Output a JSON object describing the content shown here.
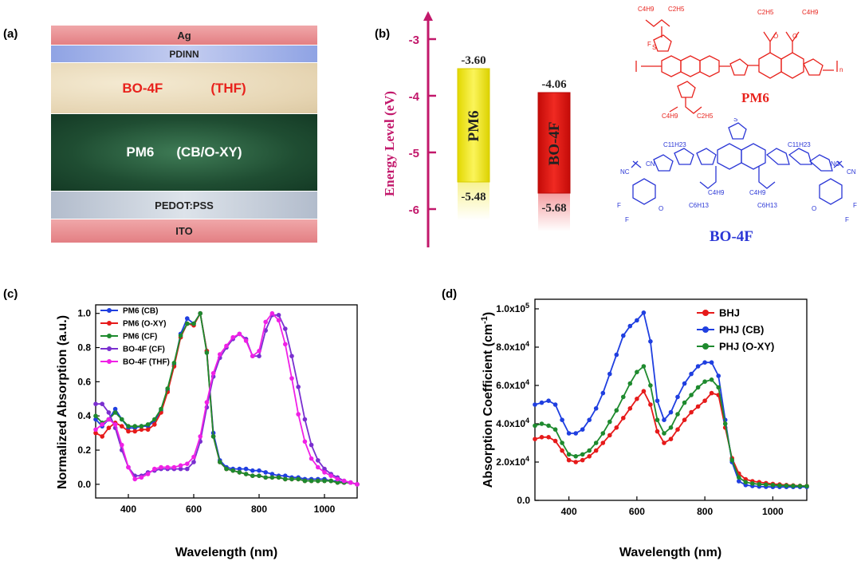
{
  "panel_labels": [
    "(a)",
    "(b)",
    "(c)",
    "(d)"
  ],
  "device_stack": {
    "layers": [
      {
        "name": "Ag",
        "color": "#e88c8f"
      },
      {
        "name": "PDINN",
        "color": "#a7b5e6"
      },
      {
        "name": "BO-4F",
        "extra": "(THF)",
        "color": "#eadcc0",
        "text_color": "#e8221c"
      },
      {
        "name": "PM6",
        "extra": "(CB/O-XY)",
        "color": "#255a3a",
        "text_color": "#ffffff"
      },
      {
        "name": "PEDOT:PSS",
        "color": "#c5cdd8"
      },
      {
        "name": "ITO",
        "color": "#e88c8f"
      }
    ]
  },
  "energy_diagram": {
    "ylabel": "Energy Level (eV)",
    "ticks": [
      "-3",
      "-4",
      "-5",
      "-6"
    ],
    "materials": [
      {
        "name": "PM6",
        "lumo": "-3.60",
        "homo": "-5.48",
        "color": "#f2ea17"
      },
      {
        "name": "BO-4F",
        "lumo": "-4.06",
        "homo": "-5.68",
        "color": "#e3140f"
      }
    ]
  },
  "molecules": {
    "pm6": {
      "name": "PM6",
      "color": "#e8221c"
    },
    "bo4f": {
      "name": "BO-4F",
      "color": "#2b37d6"
    }
  },
  "chart_data": [
    {
      "type": "line",
      "xlabel": "Wavelength (nm)",
      "ylabel": "Normalized Absorption (a.u.)",
      "xlim": [
        300,
        1100
      ],
      "ylim": [
        -0.08,
        1.05
      ],
      "xticks": [
        "400",
        "600",
        "800",
        "1000"
      ],
      "yticks": [
        "0.0",
        "0.2",
        "0.4",
        "0.6",
        "0.8",
        "1.0"
      ],
      "legend_position": "top-left",
      "series": [
        {
          "name": "PM6 (CB)",
          "color": "#1f3fe0",
          "x": [
            300,
            320,
            340,
            360,
            380,
            400,
            420,
            440,
            460,
            480,
            500,
            520,
            540,
            560,
            580,
            600,
            620,
            640,
            660,
            680,
            700,
            720,
            740,
            760,
            780,
            800,
            820,
            840,
            860,
            880,
            900,
            920,
            940,
            960,
            980,
            1000,
            1020,
            1040,
            1060,
            1080,
            1100
          ],
          "y": [
            0.38,
            0.34,
            0.38,
            0.44,
            0.38,
            0.33,
            0.33,
            0.34,
            0.34,
            0.37,
            0.43,
            0.55,
            0.7,
            0.88,
            0.97,
            0.94,
            1.0,
            0.78,
            0.3,
            0.14,
            0.1,
            0.09,
            0.09,
            0.09,
            0.08,
            0.08,
            0.07,
            0.06,
            0.05,
            0.05,
            0.04,
            0.04,
            0.03,
            0.03,
            0.03,
            0.03,
            0.02,
            0.02,
            0.01,
            0.01,
            0.0
          ]
        },
        {
          "name": "PM6 (O-XY)",
          "color": "#e61a1a",
          "x": [
            300,
            320,
            340,
            360,
            380,
            400,
            420,
            440,
            460,
            480,
            500,
            520,
            540,
            560,
            580,
            600,
            620,
            640,
            660,
            680,
            700,
            720,
            740,
            760,
            780,
            800,
            820,
            840,
            860,
            880,
            900,
            920,
            940,
            960,
            980,
            1000,
            1020,
            1040,
            1060,
            1080,
            1100
          ],
          "y": [
            0.3,
            0.28,
            0.33,
            0.36,
            0.34,
            0.31,
            0.31,
            0.32,
            0.32,
            0.35,
            0.42,
            0.54,
            0.69,
            0.86,
            0.94,
            0.93,
            1.0,
            0.78,
            0.28,
            0.13,
            0.09,
            0.08,
            0.07,
            0.06,
            0.05,
            0.05,
            0.04,
            0.04,
            0.04,
            0.03,
            0.03,
            0.03,
            0.02,
            0.02,
            0.02,
            0.02,
            0.02,
            0.01,
            0.01,
            0.01,
            0.0
          ]
        },
        {
          "name": "PM6 (CF)",
          "color": "#1e8a2e",
          "x": [
            300,
            320,
            340,
            360,
            380,
            400,
            420,
            440,
            460,
            480,
            500,
            520,
            540,
            560,
            580,
            600,
            620,
            640,
            660,
            680,
            700,
            720,
            740,
            760,
            780,
            800,
            820,
            840,
            860,
            880,
            900,
            920,
            940,
            960,
            980,
            1000,
            1020,
            1040,
            1060,
            1080,
            1100
          ],
          "y": [
            0.4,
            0.36,
            0.38,
            0.42,
            0.38,
            0.34,
            0.34,
            0.34,
            0.35,
            0.38,
            0.44,
            0.56,
            0.71,
            0.87,
            0.94,
            0.94,
            1.0,
            0.77,
            0.28,
            0.13,
            0.09,
            0.08,
            0.07,
            0.06,
            0.05,
            0.05,
            0.04,
            0.04,
            0.04,
            0.03,
            0.03,
            0.03,
            0.02,
            0.02,
            0.02,
            0.02,
            0.02,
            0.01,
            0.01,
            0.01,
            0.0
          ]
        },
        {
          "name": "BO-4F (CF)",
          "color": "#7a2fd0",
          "x": [
            300,
            320,
            340,
            360,
            380,
            400,
            420,
            440,
            460,
            480,
            500,
            520,
            540,
            560,
            580,
            600,
            620,
            640,
            660,
            680,
            700,
            720,
            740,
            760,
            780,
            800,
            820,
            840,
            860,
            880,
            900,
            920,
            940,
            960,
            980,
            1000,
            1020,
            1040,
            1060,
            1080,
            1100
          ],
          "y": [
            0.47,
            0.47,
            0.42,
            0.33,
            0.2,
            0.1,
            0.05,
            0.05,
            0.07,
            0.08,
            0.09,
            0.09,
            0.09,
            0.09,
            0.09,
            0.13,
            0.25,
            0.45,
            0.63,
            0.74,
            0.8,
            0.85,
            0.88,
            0.85,
            0.75,
            0.75,
            0.9,
            0.99,
            0.99,
            0.91,
            0.75,
            0.57,
            0.38,
            0.23,
            0.14,
            0.09,
            0.06,
            0.04,
            0.02,
            0.01,
            0.0
          ]
        },
        {
          "name": "BO-4F (THF)",
          "color": "#f020e6",
          "x": [
            300,
            320,
            340,
            360,
            380,
            400,
            420,
            440,
            460,
            480,
            500,
            520,
            540,
            560,
            580,
            600,
            620,
            640,
            660,
            680,
            700,
            720,
            740,
            760,
            780,
            800,
            820,
            840,
            860,
            880,
            900,
            920,
            940,
            960,
            980,
            1000,
            1020,
            1040,
            1060,
            1080,
            1100
          ],
          "y": [
            0.32,
            0.35,
            0.38,
            0.35,
            0.23,
            0.1,
            0.03,
            0.04,
            0.06,
            0.09,
            0.1,
            0.1,
            0.1,
            0.11,
            0.12,
            0.16,
            0.28,
            0.48,
            0.65,
            0.76,
            0.81,
            0.86,
            0.88,
            0.84,
            0.75,
            0.78,
            0.95,
            1.0,
            0.96,
            0.82,
            0.62,
            0.41,
            0.25,
            0.15,
            0.1,
            0.07,
            0.05,
            0.03,
            0.02,
            0.01,
            0.0
          ]
        }
      ]
    },
    {
      "type": "line",
      "xlabel": "Wavelength (nm)",
      "ylabel": "Absorption Coefficient (cm-1)",
      "xlim": [
        300,
        1100
      ],
      "ylim": [
        0,
        105000
      ],
      "xticks": [
        "400",
        "600",
        "800",
        "1000"
      ],
      "yticks": [
        "0.0",
        "2.0x10",
        "4.0x10",
        "6.0x10",
        "8.0x10",
        "1.0x10"
      ],
      "ytick_exp": [
        "",
        "4",
        "4",
        "4",
        "4",
        "5"
      ],
      "legend_position": "top-right",
      "series": [
        {
          "name": "BHJ",
          "color": "#e61a1a",
          "x": [
            300,
            320,
            340,
            360,
            380,
            400,
            420,
            440,
            460,
            480,
            500,
            520,
            540,
            560,
            580,
            600,
            620,
            640,
            660,
            680,
            700,
            720,
            740,
            760,
            780,
            800,
            820,
            840,
            860,
            880,
            900,
            920,
            940,
            960,
            980,
            1000,
            1020,
            1040,
            1060,
            1080,
            1100
          ],
          "y": [
            32000,
            33000,
            33000,
            31000,
            26000,
            21000,
            20000,
            21000,
            23000,
            26000,
            30000,
            34000,
            38000,
            43000,
            48000,
            53000,
            57000,
            50000,
            36000,
            30000,
            32000,
            37000,
            42000,
            46000,
            49000,
            52000,
            56000,
            55000,
            38000,
            22000,
            14000,
            11000,
            10000,
            9500,
            9000,
            8600,
            8300,
            8000,
            7800,
            7600,
            7500
          ]
        },
        {
          "name": "PHJ (CB)",
          "color": "#1f3fe0",
          "x": [
            300,
            320,
            340,
            360,
            380,
            400,
            420,
            440,
            460,
            480,
            500,
            520,
            540,
            560,
            580,
            600,
            620,
            640,
            660,
            680,
            700,
            720,
            740,
            760,
            780,
            800,
            820,
            840,
            860,
            880,
            900,
            920,
            940,
            960,
            980,
            1000,
            1020,
            1040,
            1060,
            1080,
            1100
          ],
          "y": [
            50000,
            51000,
            52000,
            50000,
            42000,
            35000,
            35000,
            37000,
            42000,
            48000,
            56000,
            66000,
            76000,
            86000,
            91000,
            94000,
            98000,
            83000,
            52000,
            42000,
            46000,
            54000,
            61000,
            66000,
            70000,
            72000,
            72000,
            65000,
            42000,
            20000,
            10000,
            8000,
            7500,
            7200,
            7100,
            7000,
            7000,
            7000,
            7000,
            7000,
            7000
          ]
        },
        {
          "name": "PHJ (O-XY)",
          "color": "#1e8a2e",
          "x": [
            300,
            320,
            340,
            360,
            380,
            400,
            420,
            440,
            460,
            480,
            500,
            520,
            540,
            560,
            580,
            600,
            620,
            640,
            660,
            680,
            700,
            720,
            740,
            760,
            780,
            800,
            820,
            840,
            860,
            880,
            900,
            920,
            940,
            960,
            980,
            1000,
            1020,
            1040,
            1060,
            1080,
            1100
          ],
          "y": [
            39000,
            40000,
            39000,
            37000,
            30000,
            24000,
            23000,
            24000,
            26000,
            30000,
            35000,
            41000,
            47000,
            54000,
            61000,
            67000,
            70000,
            60000,
            42000,
            35000,
            38000,
            45000,
            51000,
            55000,
            59000,
            62000,
            63000,
            59000,
            40000,
            21000,
            12000,
            9500,
            8800,
            8400,
            8200,
            8000,
            7800,
            7700,
            7600,
            7500,
            7400
          ]
        }
      ]
    }
  ]
}
